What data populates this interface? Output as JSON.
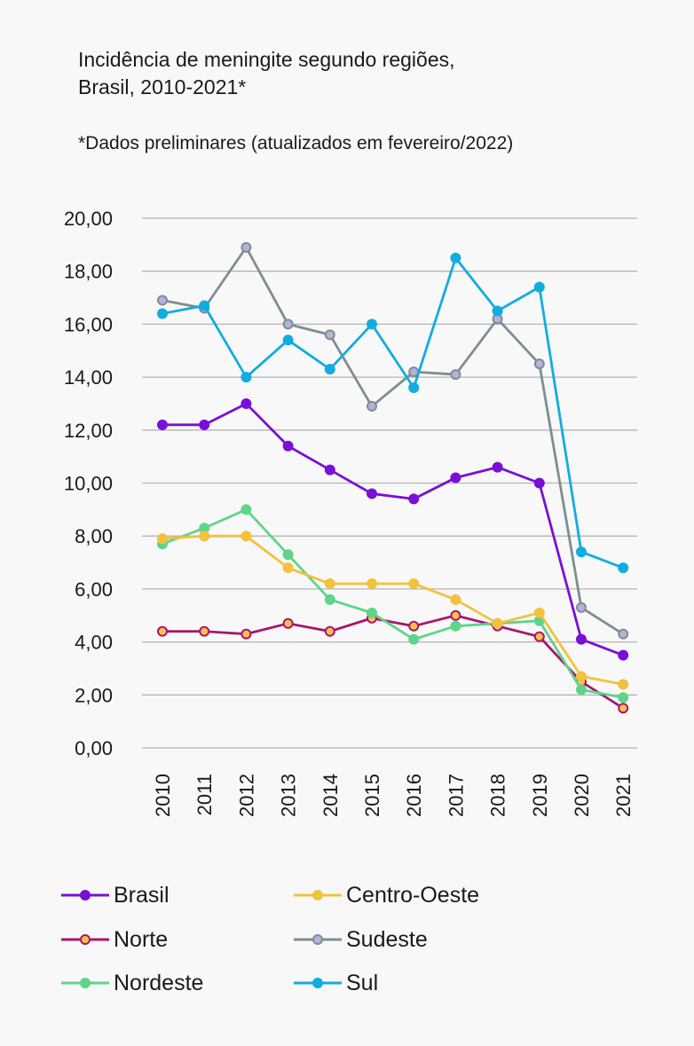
{
  "title_line1": "Incidência de meningite segundo regiões,",
  "title_line2": "Brasil, 2010-2021*",
  "note": "*Dados preliminares (atualizados em fevereiro/2022)",
  "chart_data": {
    "type": "line",
    "x": [
      "2010",
      "2011",
      "2012",
      "2013",
      "2014",
      "2015",
      "2016",
      "2017",
      "2018",
      "2019",
      "2020",
      "2021"
    ],
    "y_ticks": [
      "0,00",
      "2,00",
      "4,00",
      "6,00",
      "8,00",
      "10,00",
      "12,00",
      "14,00",
      "16,00",
      "18,00",
      "20,00"
    ],
    "ylim": [
      0,
      20
    ],
    "grid": true,
    "legend_position": "bottom",
    "series": [
      {
        "name": "Brasil",
        "color": "#7a0fd6",
        "marker_fill": "#7a0fd6",
        "values": [
          12.2,
          12.2,
          13.0,
          11.4,
          10.5,
          9.6,
          9.4,
          10.2,
          10.6,
          10.0,
          4.1,
          3.5
        ]
      },
      {
        "name": "Norte",
        "color": "#a8166e",
        "marker_fill": "#ffc04d",
        "values": [
          4.4,
          4.4,
          4.3,
          4.7,
          4.4,
          4.9,
          4.6,
          5.0,
          4.6,
          4.2,
          2.5,
          1.5
        ]
      },
      {
        "name": "Nordeste",
        "color": "#5fd48a",
        "marker_fill": "#5fd48a",
        "values": [
          7.7,
          8.3,
          9.0,
          7.3,
          5.6,
          5.1,
          4.1,
          4.6,
          4.7,
          4.8,
          2.2,
          1.9
        ]
      },
      {
        "name": "Centro-Oeste",
        "color": "#f2c23e",
        "marker_fill": "#f2c23e",
        "values": [
          7.9,
          8.0,
          8.0,
          6.8,
          6.2,
          6.2,
          6.2,
          5.6,
          4.7,
          5.1,
          2.7,
          2.4
        ]
      },
      {
        "name": "Sudeste",
        "color": "#7d8f8f",
        "marker_fill": "#b8aee0",
        "values": [
          16.9,
          16.6,
          18.9,
          16.0,
          15.6,
          12.9,
          14.2,
          14.1,
          16.2,
          14.5,
          5.3,
          4.3
        ]
      },
      {
        "name": "Sul",
        "color": "#12ace0",
        "marker_fill": "#12ace0",
        "values": [
          16.4,
          16.7,
          14.0,
          15.4,
          14.3,
          16.0,
          13.6,
          18.5,
          16.5,
          17.4,
          7.4,
          6.8
        ]
      }
    ]
  }
}
